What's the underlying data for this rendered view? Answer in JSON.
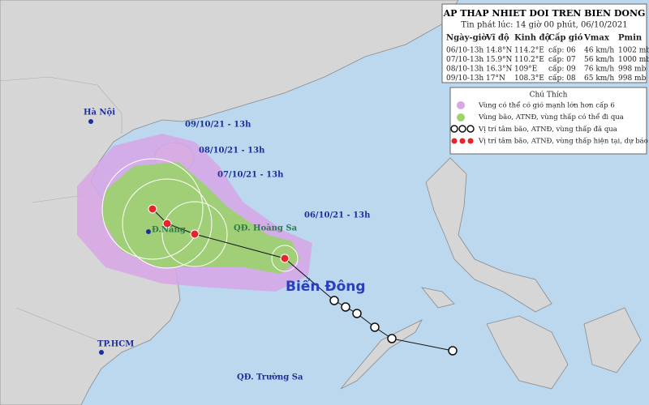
{
  "info_box": {
    "title": "AP THAP NHIET DOI TREN BIEN DONG",
    "subtitle": "Tin phát lúc: 14 giờ 00 phút, 06/10/2021",
    "table": {
      "headers": [
        "Ngày-giờ",
        "Vĩ độ",
        "Kinh độ",
        "Cấp gió",
        "Vmax",
        "Pmin"
      ],
      "rows": [
        [
          "06/10-13h",
          "14.8°N",
          "114.2°E",
          "cấp: 06",
          "46 km/h",
          "1002 mb"
        ],
        [
          "07/10-13h",
          "15.9°N",
          "110.2°E",
          "cấp: 07",
          "56 km/h",
          "1000 mb"
        ],
        [
          "08/10-13h",
          "16.3°N",
          "109°E",
          "cấp: 09",
          "76 km/h",
          "998 mb"
        ],
        [
          "09/10-13h",
          "17°N",
          "108.3°E",
          "cấp: 08",
          "65 km/h",
          "998 mb"
        ]
      ]
    }
  },
  "legend": {
    "title": "Chú Thích",
    "items": [
      "Vùng có thể có gió mạnh lớn hơn cấp 6",
      "Vùng bão, ATNĐ, vùng thấp có thể đi qua",
      "Vị trí tâm bão, ATNĐ, vùng thấp đã qua",
      "Vị trí tâm bão, ATNĐ, vùng thấp hiện tại, dự báo"
    ]
  },
  "map_labels": {
    "forecast_times": [
      "09/10/21 - 13h",
      "08/10/21 - 13h",
      "07/10/21 - 13h",
      "06/10/21 - 13h"
    ],
    "places": [
      "Hà Nội",
      "Đ.Nẵng",
      "QĐ. Hoàng Sa",
      "TP.HCM",
      "QĐ. Trường Sa"
    ],
    "sea": "Biển Đông"
  }
}
